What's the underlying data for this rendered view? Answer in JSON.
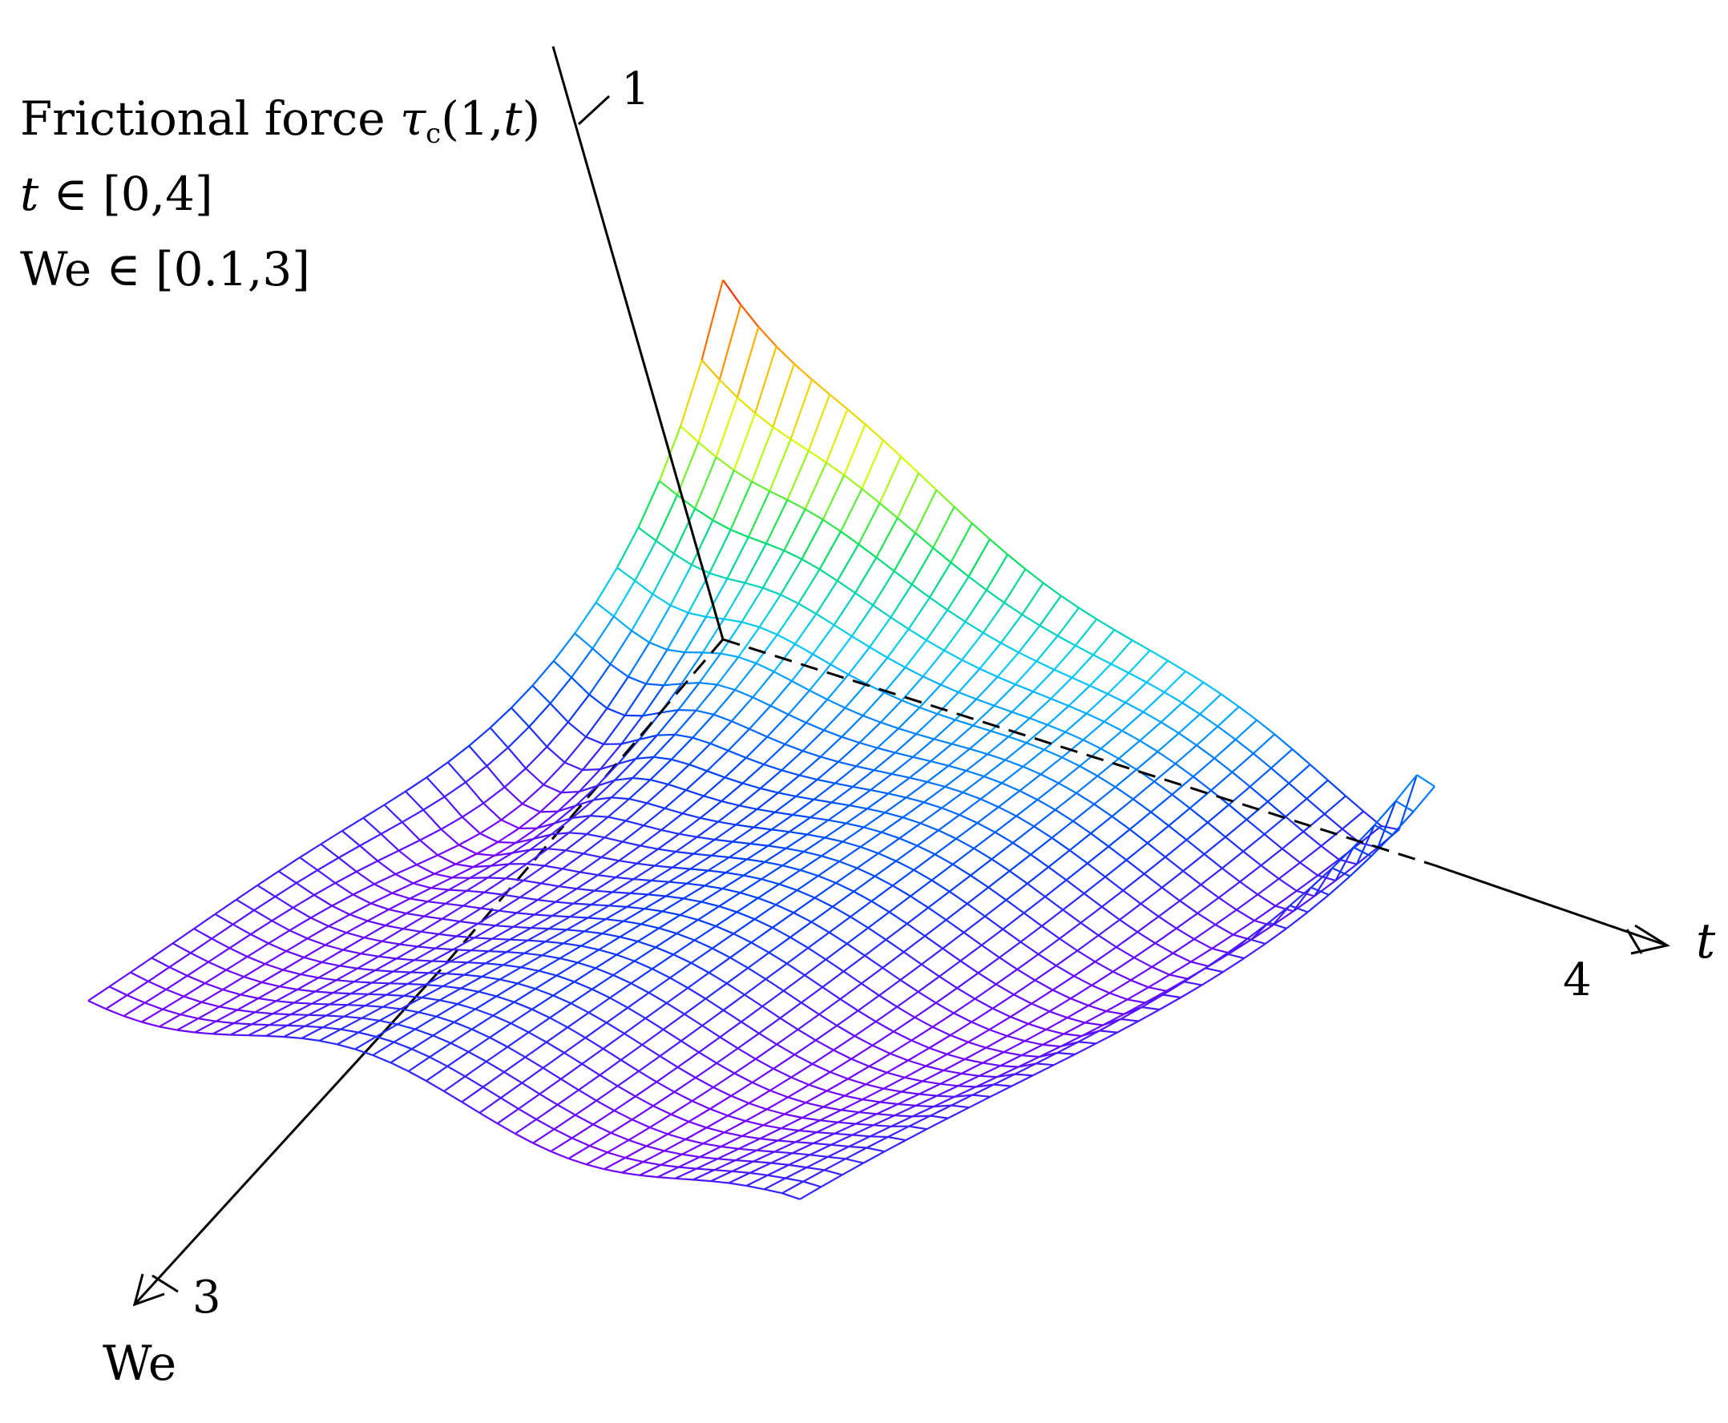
{
  "chart_data": {
    "type": "surface",
    "style": "wireframe mesh, rainbow colormap by height",
    "annotation": {
      "line1_prefix": "Frictional force ",
      "line1_symbol": "τ",
      "line1_sub": "c",
      "line1_args": "(1,",
      "line1_var": "t",
      "line1_close": ")",
      "line2_var": "t",
      "line2_range": " ∈  [0,4]",
      "line3": "We ∈ [0.1,3]"
    },
    "axes": {
      "t": {
        "label": "t",
        "range": [
          0,
          4
        ],
        "end_tick": "4"
      },
      "We": {
        "label": "We",
        "range": [
          0.1,
          3
        ],
        "end_tick": "3"
      },
      "z": {
        "label": "",
        "end_tick": "1"
      }
    },
    "grid_t_steps": 40,
    "grid_we_steps": 30,
    "colormap": [
      "#7a00ff",
      "#0040ff",
      "#00c8ff",
      "#00e060",
      "#d8ff00",
      "#ffb000",
      "#ff1a00"
    ]
  }
}
